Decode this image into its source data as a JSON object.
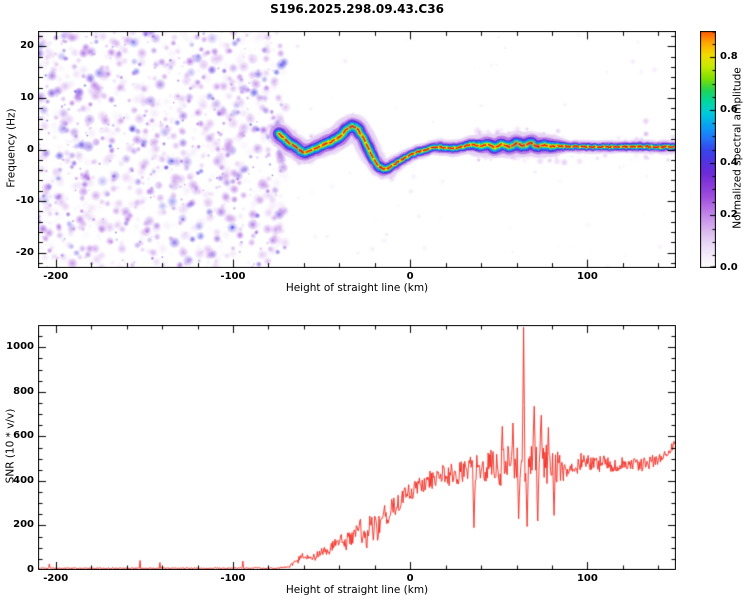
{
  "title": "S196.2025.298.09.43.C36",
  "seed": 7,
  "chart_data": [
    {
      "type": "heatmap",
      "name": "spectrogram",
      "xlabel": "Height of straight line (km)",
      "ylabel": "Frequency (Hz)",
      "xlim": [
        -210,
        150
      ],
      "ylim": [
        -23,
        23
      ],
      "xticks": [
        -200,
        -100,
        0,
        100
      ],
      "yticks": [
        -20,
        -10,
        0,
        10,
        20
      ],
      "x_minor_step": 20,
      "y_minor_step": 2,
      "colormap": [
        [
          0.0,
          "#ffffff"
        ],
        [
          0.06,
          "#f2e8fa"
        ],
        [
          0.12,
          "#e2c8f2"
        ],
        [
          0.2,
          "#c489e8"
        ],
        [
          0.28,
          "#9b45dd"
        ],
        [
          0.36,
          "#6d2bd8"
        ],
        [
          0.44,
          "#3b3be8"
        ],
        [
          0.5,
          "#1f7dfc"
        ],
        [
          0.56,
          "#00b4f0"
        ],
        [
          0.61,
          "#00ddc8"
        ],
        [
          0.66,
          "#00d070"
        ],
        [
          0.72,
          "#7fe000"
        ],
        [
          0.79,
          "#eef000"
        ],
        [
          0.85,
          "#ffb000"
        ],
        [
          0.9,
          "#ff5500"
        ],
        [
          0.95,
          "#f51515"
        ],
        [
          1.0,
          "#cf0045"
        ]
      ],
      "noise_region": {
        "x_min": -210,
        "x_max": -70,
        "blob_count": 1300,
        "value_min": 0.04,
        "value_max": 0.45
      },
      "signal_trace": {
        "points": [
          [
            -74,
            3.0
          ],
          [
            -71,
            2.2
          ],
          [
            -68,
            1.2
          ],
          [
            -65,
            0.6
          ],
          [
            -62,
            -0.2
          ],
          [
            -59,
            -0.7
          ],
          [
            -56,
            -0.2
          ],
          [
            -52,
            0.5
          ],
          [
            -48,
            1.1
          ],
          [
            -44,
            1.6
          ],
          [
            -40,
            2.4
          ],
          [
            -36,
            3.8
          ],
          [
            -33,
            4.6
          ],
          [
            -30,
            4.2
          ],
          [
            -27,
            2.6
          ],
          [
            -24,
            0.6
          ],
          [
            -21,
            -1.6
          ],
          [
            -18,
            -3.2
          ],
          [
            -15,
            -3.9
          ],
          [
            -12,
            -3.6
          ],
          [
            -9,
            -2.9
          ],
          [
            -6,
            -2.2
          ],
          [
            -3,
            -1.6
          ],
          [
            0,
            -1.1
          ],
          [
            4,
            -0.5
          ],
          [
            8,
            -0.1
          ],
          [
            12,
            0.3
          ],
          [
            16,
            0.5
          ],
          [
            20,
            0.4
          ],
          [
            24,
            0.2
          ],
          [
            28,
            0.4
          ],
          [
            32,
            0.8
          ],
          [
            36,
            1.0
          ],
          [
            40,
            0.6
          ],
          [
            44,
            1.0
          ],
          [
            48,
            0.3
          ],
          [
            52,
            1.1
          ],
          [
            56,
            0.4
          ],
          [
            60,
            1.3
          ],
          [
            64,
            0.6
          ],
          [
            68,
            1.4
          ],
          [
            72,
            0.5
          ],
          [
            76,
            0.9
          ],
          [
            80,
            0.6
          ],
          [
            85,
            0.7
          ],
          [
            90,
            0.5
          ],
          [
            95,
            0.6
          ],
          [
            100,
            0.5
          ],
          [
            110,
            0.5
          ],
          [
            120,
            0.5
          ],
          [
            130,
            0.6
          ],
          [
            140,
            0.5
          ],
          [
            150,
            0.5
          ]
        ],
        "layers": [
          [
            18,
            0.1,
            0.4
          ],
          [
            12,
            0.22,
            0.55
          ],
          [
            8.5,
            0.4,
            0.8
          ],
          [
            6,
            0.52,
            0.9
          ],
          [
            4.2,
            0.62,
            1.0
          ],
          [
            2.8,
            0.74,
            1.0
          ],
          [
            1.9,
            0.8,
            1.0
          ]
        ],
        "core_value": 0.95,
        "width_profile": [
          [
            -76,
            1.45
          ],
          [
            -58,
            1.15
          ],
          [
            -42,
            1.3
          ],
          [
            -26,
            1.3
          ],
          [
            -14,
            1.0
          ],
          [
            -2,
            0.8
          ],
          [
            30,
            0.85
          ],
          [
            42,
            1.2
          ],
          [
            62,
            1.3
          ],
          [
            80,
            1.15
          ],
          [
            88,
            0.7
          ],
          [
            150,
            0.7
          ]
        ],
        "hot_blobs": [
          [
            -70,
            1.8,
            0.5
          ],
          [
            -67,
            0.8,
            0.55
          ],
          [
            -64,
            0.2,
            0.5
          ],
          [
            -61,
            -0.5,
            0.45
          ],
          [
            -34,
            4.3,
            0.5
          ],
          [
            -31,
            4.4,
            0.55
          ],
          [
            -17,
            -3.6,
            0.5
          ],
          [
            56,
            0.6,
            0.45
          ],
          [
            60,
            1.0,
            0.5
          ],
          [
            64,
            0.8,
            0.5
          ],
          [
            68,
            1.2,
            0.45
          ],
          [
            72,
            0.7,
            0.4
          ],
          [
            133,
            3.0,
            0.22
          ],
          [
            133,
            5.5,
            0.18
          ],
          [
            133,
            -1.5,
            0.18
          ],
          [
            87,
            -2.5,
            0.18
          ]
        ]
      },
      "colorbar": {
        "label": "Normalized spectral amplitude",
        "range": [
          0,
          0.9
        ],
        "ticks": [
          0.0,
          0.2,
          0.4,
          0.6,
          0.8
        ],
        "tick_labels": [
          "0.0",
          "0.2",
          "0.4",
          "0.6",
          "0.8"
        ],
        "minor_step": 0.05
      }
    },
    {
      "type": "line",
      "name": "snr",
      "xlabel": "Height of straight line (km)",
      "ylabel": "SNR (10 * v/v)",
      "xlim": [
        -210,
        150
      ],
      "ylim": [
        0,
        1100
      ],
      "xticks": [
        -200,
        -100,
        0,
        100
      ],
      "yticks": [
        0,
        200,
        400,
        600,
        800,
        1000
      ],
      "x_minor_step": 20,
      "y_minor_step": 50,
      "line_color": "#f42a20",
      "sample_step": 0.4,
      "envelope": [
        [
          -210,
          8,
          5
        ],
        [
          -120,
          8,
          5
        ],
        [
          -75,
          9,
          6
        ],
        [
          -68,
          16,
          10
        ],
        [
          -63,
          45,
          25
        ],
        [
          -60,
          70,
          40
        ],
        [
          -57,
          48,
          26
        ],
        [
          -53,
          62,
          32
        ],
        [
          -50,
          95,
          45
        ],
        [
          -46,
          82,
          42
        ],
        [
          -43,
          128,
          60
        ],
        [
          -40,
          150,
          70
        ],
        [
          -37,
          112,
          70
        ],
        [
          -34,
          160,
          80
        ],
        [
          -31,
          150,
          90
        ],
        [
          -28,
          188,
          100
        ],
        [
          -25,
          150,
          110
        ],
        [
          -22,
          200,
          120
        ],
        [
          -19,
          172,
          110
        ],
        [
          -16,
          228,
          100
        ],
        [
          -13,
          250,
          90
        ],
        [
          -10,
          278,
          80
        ],
        [
          -7,
          300,
          72
        ],
        [
          -4,
          328,
          70
        ],
        [
          0,
          350,
          70
        ],
        [
          5,
          378,
          70
        ],
        [
          10,
          400,
          80
        ],
        [
          15,
          415,
          88
        ],
        [
          20,
          430,
          90
        ],
        [
          25,
          425,
          100
        ],
        [
          30,
          445,
          108
        ],
        [
          35,
          455,
          118
        ],
        [
          40,
          440,
          128
        ],
        [
          45,
          465,
          138
        ],
        [
          50,
          450,
          148
        ],
        [
          55,
          475,
          150
        ],
        [
          60,
          460,
          158
        ],
        [
          64,
          478,
          168
        ],
        [
          68,
          470,
          168
        ],
        [
          72,
          488,
          178
        ],
        [
          76,
          480,
          168
        ],
        [
          80,
          470,
          150
        ],
        [
          85,
          460,
          120
        ],
        [
          90,
          470,
          100
        ],
        [
          95,
          480,
          82
        ],
        [
          100,
          485,
          72
        ],
        [
          105,
          470,
          70
        ],
        [
          110,
          480,
          62
        ],
        [
          115,
          470,
          60
        ],
        [
          120,
          480,
          56
        ],
        [
          125,
          475,
          56
        ],
        [
          130,
          470,
          56
        ],
        [
          135,
          480,
          60
        ],
        [
          140,
          490,
          60
        ],
        [
          145,
          520,
          50
        ],
        [
          150,
          565,
          40
        ]
      ],
      "spikes": [
        [
          64,
          1090
        ],
        [
          52,
          645
        ],
        [
          58,
          660
        ],
        [
          70,
          735
        ],
        [
          74,
          695
        ],
        [
          78,
          640
        ]
      ],
      "dips": [
        [
          36,
          190
        ],
        [
          61,
          230
        ],
        [
          66,
          195
        ],
        [
          72,
          220
        ],
        [
          81,
          245
        ]
      ]
    }
  ]
}
